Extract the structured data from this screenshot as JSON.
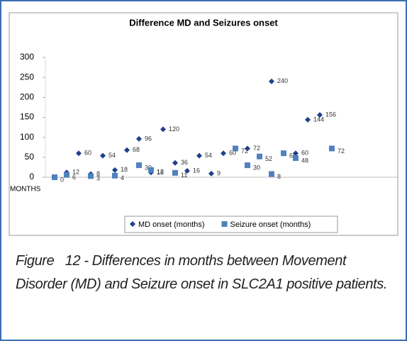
{
  "chart_data": {
    "type": "scatter",
    "title": "Difference MD and Seizures onset",
    "xlabel": "MONTHS",
    "categories": [
      null,
      null,
      null,
      null,
      null,
      null,
      null,
      null,
      null,
      null,
      null,
      null,
      null,
      null,
      null,
      null,
      null,
      null,
      null,
      null,
      null,
      null,
      null,
      null
    ],
    "series": [
      {
        "name": "MD onset (months)",
        "color": "#1f3f8f",
        "marker": "diamond",
        "values": [
          null,
          12,
          60,
          8,
          54,
          18,
          68,
          96,
          12,
          120,
          36,
          16,
          54,
          9,
          60,
          null,
          72,
          null,
          240,
          null,
          60,
          144,
          156,
          null
        ]
      },
      {
        "name": "Seizure onset (months)",
        "color": "#4f81bd",
        "marker": "square",
        "values": [
          0,
          6,
          null,
          3,
          null,
          4,
          null,
          30,
          18,
          null,
          11,
          null,
          null,
          null,
          null,
          72,
          30,
          52,
          8,
          60,
          48,
          null,
          null,
          72
        ]
      }
    ],
    "ylim": [
      0,
      300
    ],
    "yticks": [
      0,
      50,
      100,
      150,
      200,
      250,
      300
    ],
    "grid": false,
    "legend": "bottom"
  },
  "caption": "Figure   12 - Differences in months between Movement Disorder (MD) and Seizure onset in SLC2A1 positive patients."
}
